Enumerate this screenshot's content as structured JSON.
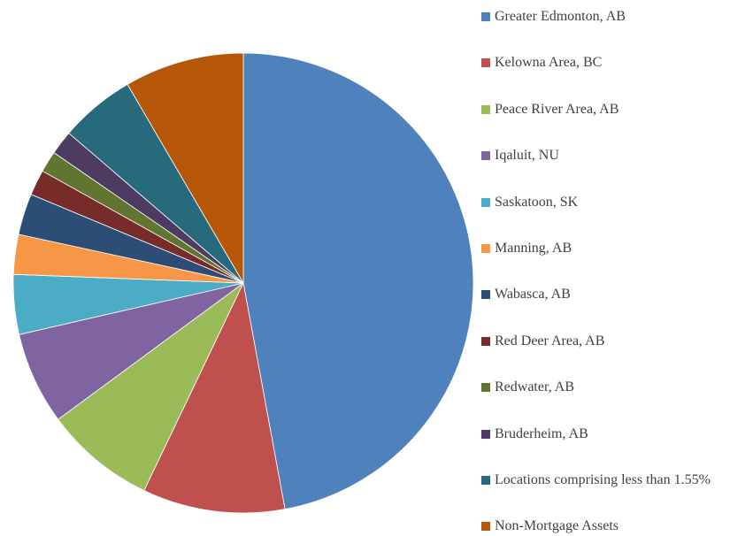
{
  "chart_data": {
    "type": "pie",
    "categories": [
      "Greater Edmonton, AB",
      "Kelowna Area, BC",
      "Peace River Area, AB",
      "Iqaluit, NU",
      "Saskatoon, SK",
      "Manning, AB",
      "Wabasca, AB",
      "Red Deer Area, AB",
      "Redwater, AB",
      "Bruderheim, AB",
      "Locations comprising less than 1.55%",
      "Non-Mortgage Assets"
    ],
    "values": [
      47.1,
      10.0,
      7.8,
      6.5,
      4.2,
      2.8,
      2.9,
      1.8,
      1.5,
      1.7,
      5.3,
      8.4
    ],
    "colors": [
      "#4f81bd",
      "#c0504d",
      "#9bbb59",
      "#8064a2",
      "#4bacc6",
      "#f79646",
      "#2c4d75",
      "#772c2a",
      "#5f7530",
      "#4d3b62",
      "#276a7c",
      "#b65708"
    ],
    "legend": "right"
  }
}
